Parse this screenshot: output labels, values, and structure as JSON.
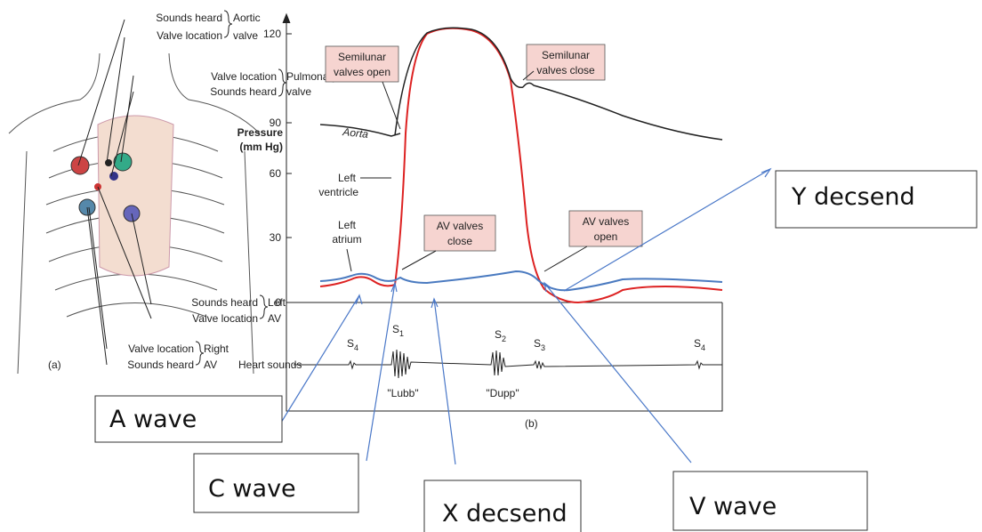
{
  "panel_a": {
    "labels": [
      {
        "lines": [
          "Sounds heard",
          "Valve location"
        ],
        "valve": [
          "Aortic",
          "valve"
        ]
      },
      {
        "lines": [
          "Valve location",
          "Sounds heard"
        ],
        "valve": [
          "Pulmonary",
          "valve"
        ]
      },
      {
        "lines": [
          "Sounds heard",
          "Valve location"
        ],
        "valve": [
          "Left",
          "AV"
        ]
      },
      {
        "lines": [
          "Valve location",
          "Sounds heard"
        ],
        "valve": [
          "Right",
          "AV"
        ]
      }
    ],
    "caption": "(a)"
  },
  "panel_b": {
    "y_label": [
      "Pressure",
      "(mm Hg)"
    ],
    "y_ticks": [
      "0",
      "30",
      "60",
      "90",
      "120"
    ],
    "curves": {
      "aorta": "Aorta",
      "left_ventricle": [
        "Left",
        "ventricle"
      ],
      "left_atrium": [
        "Left",
        "atrium"
      ]
    },
    "callouts": [
      [
        "Semilunar",
        "valves open"
      ],
      [
        "Semilunar",
        "valves close"
      ],
      [
        "AV valves",
        "close"
      ],
      [
        "AV valves",
        "open"
      ]
    ],
    "heart_sounds_label": "Heart sounds",
    "sounds": [
      {
        "base": "S",
        "sub": "4"
      },
      {
        "base": "S",
        "sub": "1"
      },
      {
        "base": "S",
        "sub": "2"
      },
      {
        "base": "S",
        "sub": "3"
      },
      {
        "base": "S",
        "sub": "4"
      }
    ],
    "sound_names": [
      "\"Lubb\"",
      "\"Dupp\""
    ],
    "caption": "(b)"
  },
  "annotations": [
    "Y decsend",
    "A wave",
    "C wave",
    "X decsend",
    "V wave"
  ]
}
